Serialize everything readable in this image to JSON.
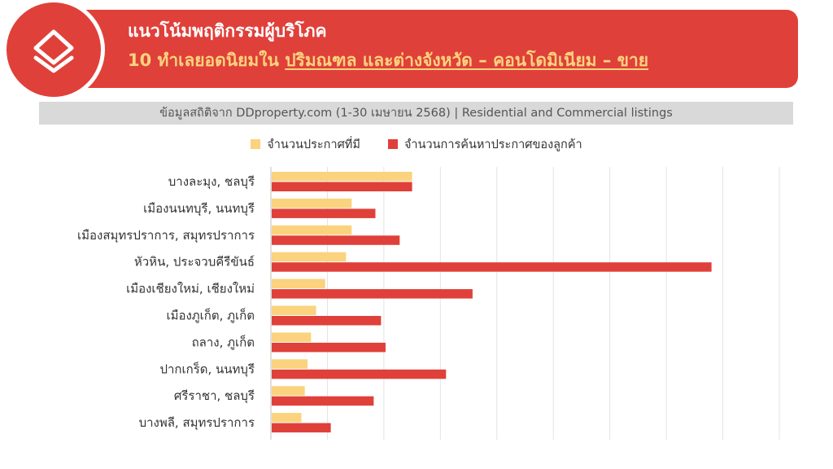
{
  "header": {
    "title_line1": "แนวโน้มพฤติกรรมผู้บริโภค",
    "title_line2_prefix": "10 ทำเลยอดนิยมใน ",
    "title_line2_highlight": "ปริมณฑล และต่างจังหวัด – คอนโดมิเนียม – ขาย",
    "logo_icon": "ddproperty-house-logo-icon"
  },
  "source": "ข้อมูลสถิติจาก DDproperty.com (1-30 เมษายน 2568) | Residential and Commercial listings",
  "colors": {
    "brand_red": "#e0403a",
    "listings": "#fbd37e",
    "searches": "#e0403a"
  },
  "chart_data": {
    "type": "bar",
    "orientation": "horizontal",
    "categories": [
      "บางละมุง, ชลบุรี",
      "เมืองนนทบุรี, นนทบุรี",
      "เมืองสมุทรปราการ, สมุทรปราการ",
      "หัวหิน, ประจวบคีรีขันธ์",
      "เมืองเชียงใหม่, เชียงใหม่",
      "เมืองภูเก็ต, ภูเก็ต",
      "ถลาง, ภูเก็ต",
      "ปากเกร็ด, นนทบุรี",
      "ศรีราชา, ชลบุรี",
      "บางพลี, สมุทรปราการ"
    ],
    "series": [
      {
        "name": "จำนวนประกาศที่มี",
        "color": "#fbd37e",
        "values": [
          2.5,
          1.43,
          1.43,
          1.33,
          0.96,
          0.8,
          0.71,
          0.65,
          0.6,
          0.54
        ]
      },
      {
        "name": "จำนวนการค้นหาประกาศของลูกค้า",
        "color": "#e0403a",
        "values": [
          2.5,
          1.85,
          2.28,
          7.8,
          3.57,
          1.95,
          2.03,
          3.1,
          1.82,
          1.06
        ]
      }
    ],
    "xlim": [
      0,
      9
    ],
    "grid": true,
    "legend": "top-center",
    "axis_tick_labels": false
  }
}
